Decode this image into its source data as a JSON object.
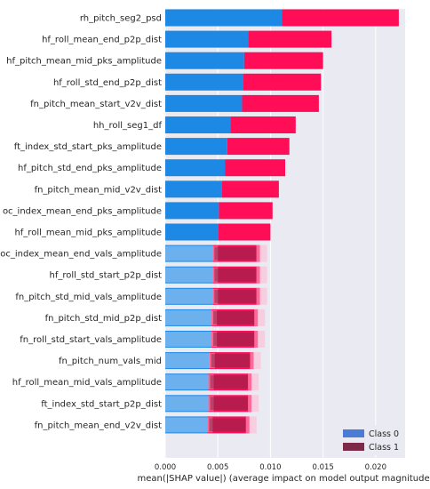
{
  "chart_data": {
    "type": "bar",
    "orientation": "horizontal",
    "stacked": true,
    "xlabel": "mean(|SHAP value|) (average impact on model output magnitude)",
    "xlim": [
      0,
      0.0228
    ],
    "xticks": [
      "0.000",
      "0.005",
      "0.010",
      "0.015",
      "0.020"
    ],
    "xtick_values": [
      0,
      0.005,
      0.01,
      0.015,
      0.02
    ],
    "grid": true,
    "legend_position": "bottom-right",
    "categories": [
      "rh_pitch_seg2_psd",
      "hf_roll_mean_end_p2p_dist",
      "hf_pitch_mean_mid_pks_amplitude",
      "hf_roll_std_end_p2p_dist",
      "fn_pitch_mean_start_v2v_dist",
      "hh_roll_seg1_df",
      "ft_index_std_start_pks_amplitude",
      "hf_pitch_std_end_pks_amplitude",
      "fn_pitch_mean_mid_v2v_dist",
      "oc_index_mean_end_pks_amplitude",
      "hf_roll_mean_mid_pks_amplitude",
      "oc_index_mean_end_vals_amplitude",
      "hf_roll_std_start_p2p_dist",
      "fn_pitch_std_mid_vals_amplitude",
      "fn_pitch_std_mid_p2p_dist",
      "fn_roll_std_start_vals_amplitude",
      "fn_pitch_num_vals_mid",
      "hf_roll_mean_mid_vals_amplitude",
      "ft_index_std_start_p2p_dist",
      "fn_pitch_mean_end_v2v_dist"
    ],
    "series": [
      {
        "name": "Class 0",
        "color": "#1e88e5",
        "values": [
          0.0111,
          0.0079,
          0.0075,
          0.0074,
          0.0073,
          0.0062,
          0.0059,
          0.0057,
          0.0054,
          0.0051,
          0.005,
          0.0045,
          0.0045,
          0.0045,
          0.0044,
          0.0044,
          0.0042,
          0.0041,
          0.0041,
          0.004
        ]
      },
      {
        "name": "Class 1",
        "color": "#ff0d57",
        "values": [
          0.0111,
          0.0079,
          0.0075,
          0.0074,
          0.0073,
          0.0062,
          0.0059,
          0.0057,
          0.0054,
          0.0051,
          0.005,
          0.0045,
          0.0045,
          0.0045,
          0.0044,
          0.0044,
          0.0042,
          0.0041,
          0.0041,
          0.004
        ]
      }
    ],
    "legend": [
      "Class 0",
      "Class 1"
    ],
    "legend_colors": [
      "#4a7bd6",
      "#7d2a48"
    ]
  }
}
